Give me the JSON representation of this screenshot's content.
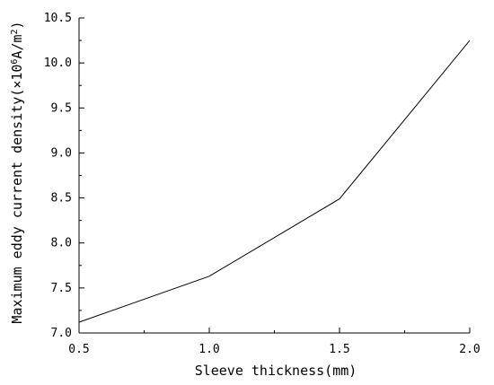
{
  "chart_data": {
    "type": "line",
    "xlabel": "Sleeve thickness(mm)",
    "ylabel": "Maximum eddy current density(×10⁶A/m²)",
    "ylabel_parts": {
      "prefix": "Maximum eddy current density(×10",
      "exp": "6",
      "mid": "A/m",
      "exp2": "2",
      "suffix": ")"
    },
    "xlim": [
      0.5,
      2.0
    ],
    "ylim": [
      7.0,
      10.5
    ],
    "x_ticks": [
      "0.5",
      "1.0",
      "1.5",
      "2.0"
    ],
    "y_ticks": [
      "7.0",
      "7.5",
      "8.0",
      "8.5",
      "9.0",
      "9.5",
      "10.0",
      "10.5"
    ],
    "grid": false,
    "series": [
      {
        "x": [
          0.5,
          1.0,
          1.5,
          2.0
        ],
        "y": [
          7.12,
          7.63,
          8.49,
          10.25
        ],
        "color": "#000000"
      }
    ]
  }
}
